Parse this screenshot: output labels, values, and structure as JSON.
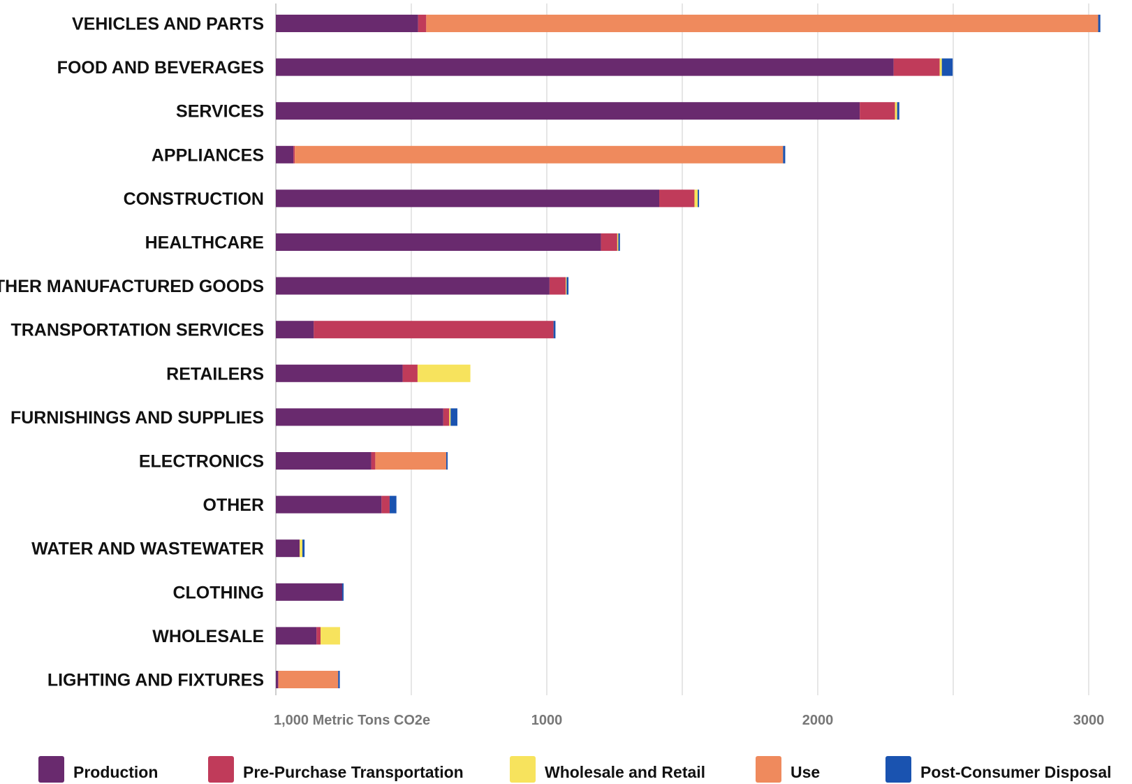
{
  "chart_data": {
    "type": "bar",
    "orientation": "horizontal",
    "stacked": true,
    "xlabel": "1,000 Metric Tons CO2e",
    "xlim": [
      0,
      3050
    ],
    "x_ticks": [
      1000,
      2000,
      3000
    ],
    "x_tick_labels": [
      "1000",
      "2000",
      "3000"
    ],
    "grid": true,
    "legend_position": "bottom",
    "categories": [
      "VEHICLES AND PARTS",
      "FOOD AND BEVERAGES",
      "SERVICES",
      "APPLIANCES",
      "CONSTRUCTION",
      "HEALTHCARE",
      "OTHER MANUFACTURED GOODS",
      "TRANSPORTATION SERVICES",
      "RETAILERS",
      "FURNISHINGS AND SUPPLIES",
      "ELECTRONICS",
      "OTHER",
      "WATER AND WASTEWATER",
      "CLOTHING",
      "WHOLESALE",
      "LIGHTING AND FIXTURES"
    ],
    "series": [
      {
        "name": "Production",
        "color": "#692a6e",
        "values": [
          525,
          2280,
          2155,
          65,
          1415,
          1200,
          1010,
          140,
          468,
          618,
          352,
          390,
          88,
          245,
          150,
          8
        ]
      },
      {
        "name": "Pre-Purchase Transportation",
        "color": "#c03b5a",
        "values": [
          30,
          170,
          130,
          5,
          130,
          60,
          60,
          885,
          55,
          22,
          15,
          30,
          0,
          0,
          15,
          2
        ]
      },
      {
        "name": "Wholesale and Retail",
        "color": "#f7e35d",
        "values": [
          0,
          8,
          8,
          0,
          12,
          4,
          3,
          0,
          195,
          5,
          0,
          0,
          10,
          0,
          72,
          0
        ]
      },
      {
        "name": "Use",
        "color": "#ef8a5d",
        "values": [
          2480,
          0,
          0,
          1802,
          0,
          0,
          0,
          0,
          0,
          0,
          262,
          0,
          0,
          0,
          0,
          220
        ]
      },
      {
        "name": "Post-Consumer Disposal",
        "color": "#1a53b0",
        "values": [
          8,
          40,
          8,
          8,
          5,
          6,
          7,
          7,
          0,
          25,
          5,
          25,
          8,
          5,
          0,
          6
        ]
      }
    ]
  }
}
